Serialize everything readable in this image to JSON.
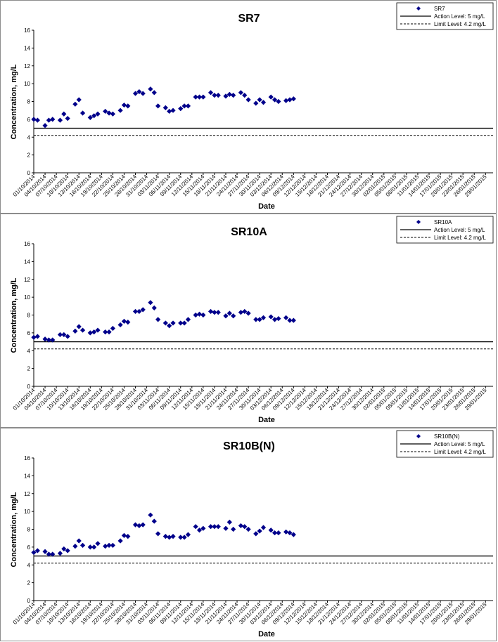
{
  "colors": {
    "marker": "#00008b",
    "action_line": "#000000",
    "limit_line": "#000000",
    "frame": "#8c8c8c"
  },
  "x_tick_labels": [
    "01/10/2014",
    "04/10/2014",
    "07/10/2014",
    "10/10/2014",
    "13/10/2014",
    "16/10/2014",
    "19/10/2014",
    "22/10/2014",
    "25/10/2014",
    "28/10/2014",
    "31/10/2014",
    "03/11/2014",
    "06/11/2014",
    "09/11/2014",
    "12/11/2014",
    "15/11/2014",
    "18/11/2014",
    "21/11/2014",
    "24/11/2014",
    "27/11/2014",
    "30/11/2014",
    "03/12/2014",
    "06/12/2014",
    "09/12/2014",
    "12/12/2014",
    "15/12/2014",
    "18/12/2014",
    "21/12/2014",
    "24/12/2014",
    "27/12/2014",
    "30/12/2014",
    "02/01/2015",
    "05/01/2015",
    "08/01/2015",
    "11/01/2015",
    "14/01/2015",
    "17/01/2015",
    "20/01/2015",
    "23/01/2015",
    "26/01/2015",
    "29/01/2015"
  ],
  "chart_data": [
    {
      "type": "scatter",
      "title": "SR7",
      "xlabel": "Date",
      "ylabel": "Concentration, mg/L",
      "ylim": [
        0,
        16
      ],
      "yticks": [
        0,
        2,
        4,
        6,
        8,
        10,
        12,
        14,
        16
      ],
      "xlim": [
        "2014-10-01",
        "2015-01-31"
      ],
      "legend_position": "top-right",
      "legend": [
        "SR7",
        "Action Level: 5 mg/L",
        "Limit Level: 4.2 mg/L"
      ],
      "action_level": 5,
      "limit_level": 4.2,
      "series": [
        {
          "name": "SR7",
          "points": [
            {
              "x": "2014-10-01",
              "y": 6.0
            },
            {
              "x": "2014-10-02",
              "y": 5.9
            },
            {
              "x": "2014-10-04",
              "y": 5.3
            },
            {
              "x": "2014-10-05",
              "y": 5.9
            },
            {
              "x": "2014-10-06",
              "y": 6.0
            },
            {
              "x": "2014-10-08",
              "y": 5.9
            },
            {
              "x": "2014-10-09",
              "y": 6.6
            },
            {
              "x": "2014-10-10",
              "y": 6.1
            },
            {
              "x": "2014-10-12",
              "y": 7.7
            },
            {
              "x": "2014-10-13",
              "y": 8.2
            },
            {
              "x": "2014-10-14",
              "y": 6.7
            },
            {
              "x": "2014-10-16",
              "y": 6.2
            },
            {
              "x": "2014-10-17",
              "y": 6.4
            },
            {
              "x": "2014-10-18",
              "y": 6.6
            },
            {
              "x": "2014-10-20",
              "y": 6.9
            },
            {
              "x": "2014-10-21",
              "y": 6.7
            },
            {
              "x": "2014-10-22",
              "y": 6.6
            },
            {
              "x": "2014-10-24",
              "y": 7.0
            },
            {
              "x": "2014-10-25",
              "y": 7.6
            },
            {
              "x": "2014-10-26",
              "y": 7.5
            },
            {
              "x": "2014-10-28",
              "y": 8.9
            },
            {
              "x": "2014-10-29",
              "y": 9.1
            },
            {
              "x": "2014-10-30",
              "y": 8.9
            },
            {
              "x": "2014-11-01",
              "y": 9.4
            },
            {
              "x": "2014-11-02",
              "y": 9.0
            },
            {
              "x": "2014-11-03",
              "y": 7.5
            },
            {
              "x": "2014-11-05",
              "y": 7.3
            },
            {
              "x": "2014-11-06",
              "y": 6.9
            },
            {
              "x": "2014-11-07",
              "y": 7.0
            },
            {
              "x": "2014-11-09",
              "y": 7.2
            },
            {
              "x": "2014-11-10",
              "y": 7.5
            },
            {
              "x": "2014-11-11",
              "y": 7.5
            },
            {
              "x": "2014-11-13",
              "y": 8.5
            },
            {
              "x": "2014-11-14",
              "y": 8.5
            },
            {
              "x": "2014-11-15",
              "y": 8.5
            },
            {
              "x": "2014-11-17",
              "y": 9.0
            },
            {
              "x": "2014-11-18",
              "y": 8.7
            },
            {
              "x": "2014-11-19",
              "y": 8.7
            },
            {
              "x": "2014-11-21",
              "y": 8.6
            },
            {
              "x": "2014-11-22",
              "y": 8.8
            },
            {
              "x": "2014-11-23",
              "y": 8.7
            },
            {
              "x": "2014-11-25",
              "y": 9.0
            },
            {
              "x": "2014-11-26",
              "y": 8.7
            },
            {
              "x": "2014-11-27",
              "y": 8.2
            },
            {
              "x": "2014-11-29",
              "y": 7.8
            },
            {
              "x": "2014-11-30",
              "y": 8.2
            },
            {
              "x": "2014-12-01",
              "y": 7.9
            },
            {
              "x": "2014-12-03",
              "y": 8.5
            },
            {
              "x": "2014-12-04",
              "y": 8.2
            },
            {
              "x": "2014-12-05",
              "y": 8.0
            },
            {
              "x": "2014-12-07",
              "y": 8.1
            },
            {
              "x": "2014-12-08",
              "y": 8.2
            },
            {
              "x": "2014-12-09",
              "y": 8.3
            }
          ]
        }
      ]
    },
    {
      "type": "scatter",
      "title": "SR10A",
      "xlabel": "Date",
      "ylabel": "Concentration, mg/L",
      "ylim": [
        0,
        16
      ],
      "yticks": [
        0,
        2,
        4,
        6,
        8,
        10,
        12,
        14,
        16
      ],
      "xlim": [
        "2014-10-01",
        "2015-01-31"
      ],
      "legend_position": "top-right",
      "legend": [
        "SR10A",
        "Action Level: 5 mg/L",
        "Limit Level: 4.2 mg/L"
      ],
      "action_level": 5,
      "limit_level": 4.2,
      "series": [
        {
          "name": "SR10A",
          "points": [
            {
              "x": "2014-10-01",
              "y": 5.5
            },
            {
              "x": "2014-10-02",
              "y": 5.6
            },
            {
              "x": "2014-10-04",
              "y": 5.3
            },
            {
              "x": "2014-10-05",
              "y": 5.2
            },
            {
              "x": "2014-10-06",
              "y": 5.2
            },
            {
              "x": "2014-10-08",
              "y": 5.8
            },
            {
              "x": "2014-10-09",
              "y": 5.8
            },
            {
              "x": "2014-10-10",
              "y": 5.6
            },
            {
              "x": "2014-10-12",
              "y": 6.2
            },
            {
              "x": "2014-10-13",
              "y": 6.7
            },
            {
              "x": "2014-10-14",
              "y": 6.3
            },
            {
              "x": "2014-10-16",
              "y": 6.0
            },
            {
              "x": "2014-10-17",
              "y": 6.1
            },
            {
              "x": "2014-10-18",
              "y": 6.3
            },
            {
              "x": "2014-10-20",
              "y": 6.1
            },
            {
              "x": "2014-10-21",
              "y": 6.1
            },
            {
              "x": "2014-10-22",
              "y": 6.5
            },
            {
              "x": "2014-10-24",
              "y": 6.9
            },
            {
              "x": "2014-10-25",
              "y": 7.3
            },
            {
              "x": "2014-10-26",
              "y": 7.2
            },
            {
              "x": "2014-10-28",
              "y": 8.4
            },
            {
              "x": "2014-10-29",
              "y": 8.4
            },
            {
              "x": "2014-10-30",
              "y": 8.6
            },
            {
              "x": "2014-11-01",
              "y": 9.4
            },
            {
              "x": "2014-11-02",
              "y": 8.8
            },
            {
              "x": "2014-11-03",
              "y": 7.5
            },
            {
              "x": "2014-11-05",
              "y": 7.1
            },
            {
              "x": "2014-11-06",
              "y": 6.8
            },
            {
              "x": "2014-11-07",
              "y": 7.1
            },
            {
              "x": "2014-11-09",
              "y": 7.1
            },
            {
              "x": "2014-11-10",
              "y": 7.1
            },
            {
              "x": "2014-11-11",
              "y": 7.5
            },
            {
              "x": "2014-11-13",
              "y": 8.0
            },
            {
              "x": "2014-11-14",
              "y": 8.1
            },
            {
              "x": "2014-11-15",
              "y": 8.0
            },
            {
              "x": "2014-11-17",
              "y": 8.4
            },
            {
              "x": "2014-11-18",
              "y": 8.3
            },
            {
              "x": "2014-11-19",
              "y": 8.3
            },
            {
              "x": "2014-11-21",
              "y": 7.9
            },
            {
              "x": "2014-11-22",
              "y": 8.2
            },
            {
              "x": "2014-11-23",
              "y": 7.9
            },
            {
              "x": "2014-11-25",
              "y": 8.3
            },
            {
              "x": "2014-11-26",
              "y": 8.4
            },
            {
              "x": "2014-11-27",
              "y": 8.2
            },
            {
              "x": "2014-11-29",
              "y": 7.5
            },
            {
              "x": "2014-11-30",
              "y": 7.5
            },
            {
              "x": "2014-12-01",
              "y": 7.7
            },
            {
              "x": "2014-12-03",
              "y": 7.8
            },
            {
              "x": "2014-12-04",
              "y": 7.5
            },
            {
              "x": "2014-12-05",
              "y": 7.6
            },
            {
              "x": "2014-12-07",
              "y": 7.7
            },
            {
              "x": "2014-12-08",
              "y": 7.4
            },
            {
              "x": "2014-12-09",
              "y": 7.4
            }
          ]
        }
      ]
    },
    {
      "type": "scatter",
      "title": "SR10B(N)",
      "xlabel": "Date",
      "ylabel": "Concentration, mg/L",
      "ylim": [
        0,
        16
      ],
      "yticks": [
        0,
        2,
        4,
        6,
        8,
        10,
        12,
        14,
        16
      ],
      "xlim": [
        "2014-10-01",
        "2015-01-31"
      ],
      "legend_position": "top-right",
      "legend": [
        "SR10B(N)",
        "Action Level: 5 mg/L",
        "Limit Level: 4.2 mg/L"
      ],
      "action_level": 5,
      "limit_level": 4.2,
      "series": [
        {
          "name": "SR10B(N)",
          "points": [
            {
              "x": "2014-10-01",
              "y": 5.4
            },
            {
              "x": "2014-10-02",
              "y": 5.6
            },
            {
              "x": "2014-10-04",
              "y": 5.5
            },
            {
              "x": "2014-10-05",
              "y": 5.2
            },
            {
              "x": "2014-10-06",
              "y": 5.2
            },
            {
              "x": "2014-10-08",
              "y": 5.3
            },
            {
              "x": "2014-10-09",
              "y": 5.8
            },
            {
              "x": "2014-10-10",
              "y": 5.6
            },
            {
              "x": "2014-10-12",
              "y": 6.1
            },
            {
              "x": "2014-10-13",
              "y": 6.7
            },
            {
              "x": "2014-10-14",
              "y": 6.2
            },
            {
              "x": "2014-10-16",
              "y": 6.0
            },
            {
              "x": "2014-10-17",
              "y": 6.0
            },
            {
              "x": "2014-10-18",
              "y": 6.4
            },
            {
              "x": "2014-10-20",
              "y": 6.1
            },
            {
              "x": "2014-10-21",
              "y": 6.2
            },
            {
              "x": "2014-10-22",
              "y": 6.2
            },
            {
              "x": "2014-10-24",
              "y": 6.7
            },
            {
              "x": "2014-10-25",
              "y": 7.3
            },
            {
              "x": "2014-10-26",
              "y": 7.2
            },
            {
              "x": "2014-10-28",
              "y": 8.5
            },
            {
              "x": "2014-10-29",
              "y": 8.4
            },
            {
              "x": "2014-10-30",
              "y": 8.5
            },
            {
              "x": "2014-11-01",
              "y": 9.6
            },
            {
              "x": "2014-11-02",
              "y": 8.9
            },
            {
              "x": "2014-11-03",
              "y": 7.5
            },
            {
              "x": "2014-11-05",
              "y": 7.2
            },
            {
              "x": "2014-11-06",
              "y": 7.1
            },
            {
              "x": "2014-11-07",
              "y": 7.2
            },
            {
              "x": "2014-11-09",
              "y": 7.1
            },
            {
              "x": "2014-11-10",
              "y": 7.1
            },
            {
              "x": "2014-11-11",
              "y": 7.4
            },
            {
              "x": "2014-11-13",
              "y": 8.3
            },
            {
              "x": "2014-11-14",
              "y": 7.9
            },
            {
              "x": "2014-11-15",
              "y": 8.1
            },
            {
              "x": "2014-11-17",
              "y": 8.3
            },
            {
              "x": "2014-11-18",
              "y": 8.3
            },
            {
              "x": "2014-11-19",
              "y": 8.3
            },
            {
              "x": "2014-11-21",
              "y": 8.1
            },
            {
              "x": "2014-11-22",
              "y": 8.8
            },
            {
              "x": "2014-11-23",
              "y": 8.0
            },
            {
              "x": "2014-11-25",
              "y": 8.4
            },
            {
              "x": "2014-11-26",
              "y": 8.3
            },
            {
              "x": "2014-11-27",
              "y": 8.0
            },
            {
              "x": "2014-11-29",
              "y": 7.5
            },
            {
              "x": "2014-11-30",
              "y": 7.8
            },
            {
              "x": "2014-12-01",
              "y": 8.2
            },
            {
              "x": "2014-12-03",
              "y": 7.9
            },
            {
              "x": "2014-12-04",
              "y": 7.6
            },
            {
              "x": "2014-12-05",
              "y": 7.6
            },
            {
              "x": "2014-12-07",
              "y": 7.7
            },
            {
              "x": "2014-12-08",
              "y": 7.6
            },
            {
              "x": "2014-12-09",
              "y": 7.4
            }
          ]
        }
      ]
    }
  ]
}
